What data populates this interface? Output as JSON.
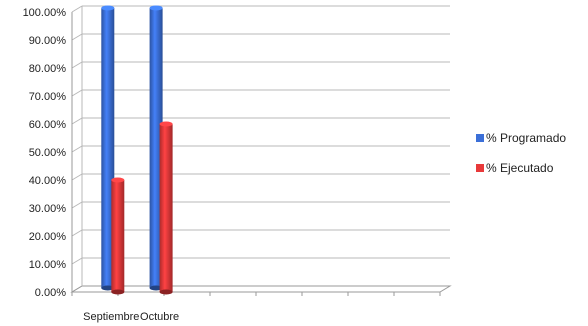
{
  "chart_data": {
    "type": "bar",
    "categories": [
      "Septiembre",
      "Octubre"
    ],
    "series": [
      {
        "name": "% Programado",
        "values": [
          100,
          100
        ],
        "color": "#3b6fd8"
      },
      {
        "name": "% Ejecutado",
        "values": [
          40,
          60
        ],
        "color": "#e8393a"
      }
    ],
    "y_ticks": [
      "0.00%",
      "10.00%",
      "20.00%",
      "30.00%",
      "40.00%",
      "50.00%",
      "60.00%",
      "70.00%",
      "80.00%",
      "90.00%",
      "100.00%"
    ],
    "ylim": [
      0,
      100
    ],
    "y_unit": "%",
    "grid": true,
    "legend_position": "right",
    "style": "3d-cylinder"
  }
}
